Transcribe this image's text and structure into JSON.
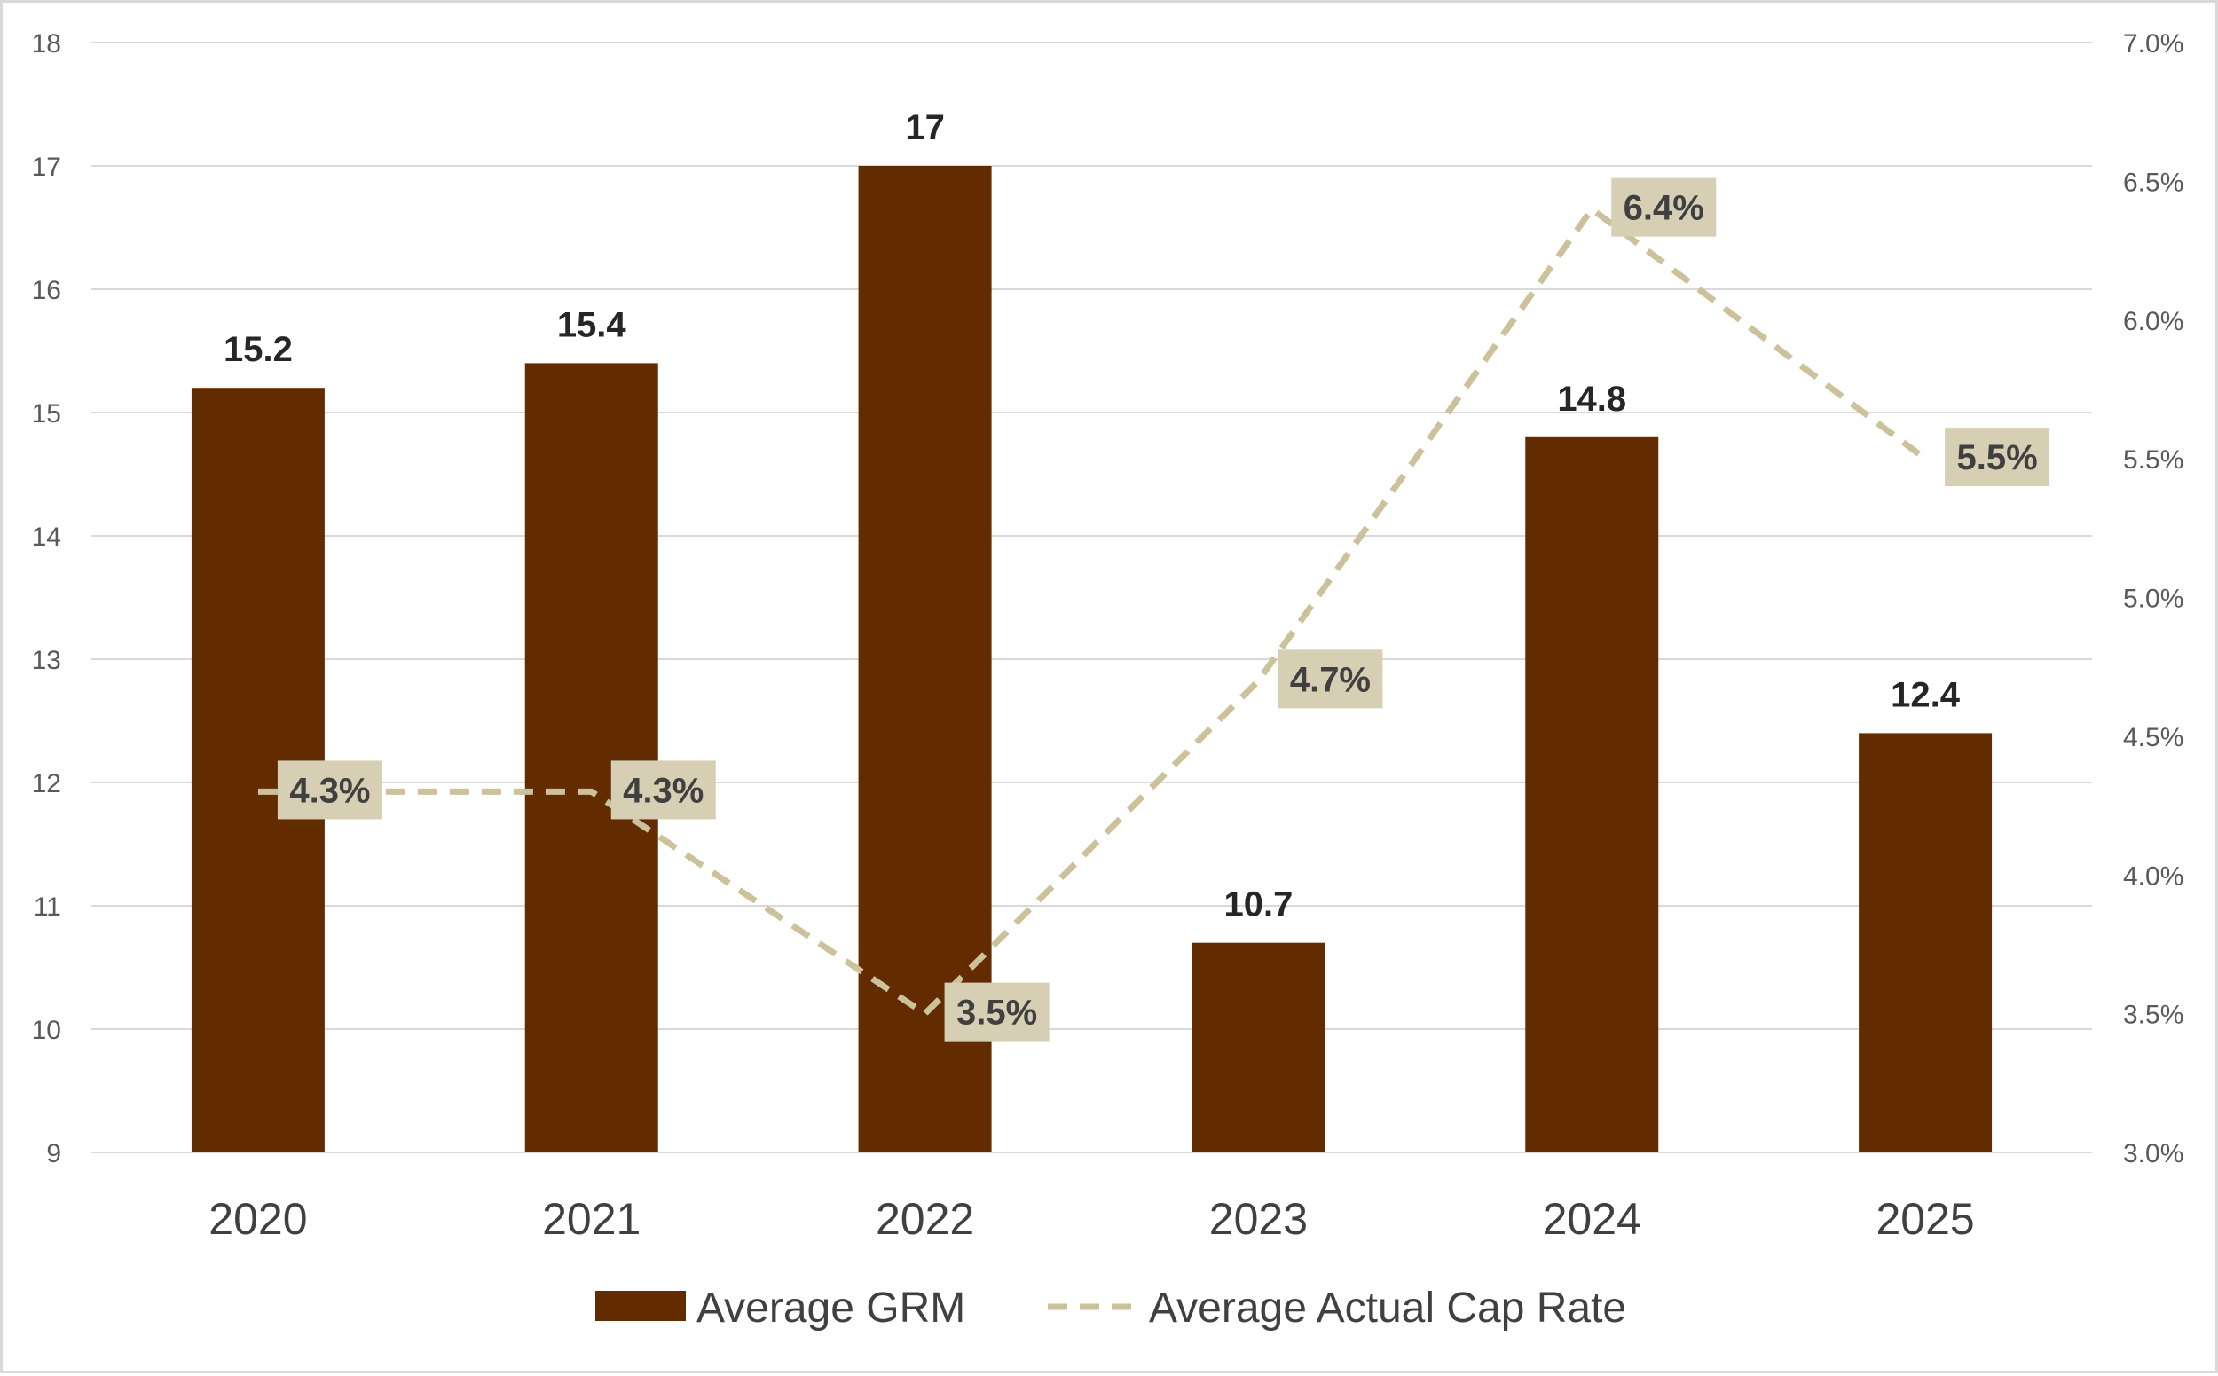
{
  "chart_data": {
    "type": "bar",
    "categories": [
      "2020",
      "2021",
      "2022",
      "2023",
      "2024",
      "2025"
    ],
    "series": [
      {
        "name": "Average GRM",
        "type": "bar",
        "axis": "left",
        "values": [
          15.2,
          15.4,
          17,
          10.7,
          14.8,
          12.4
        ],
        "labels": [
          "15.2",
          "15.4",
          "17",
          "10.7",
          "14.8",
          "12.4"
        ]
      },
      {
        "name": "Average Actual Cap Rate",
        "type": "line",
        "style": "dashed",
        "axis": "right",
        "values": [
          4.3,
          4.3,
          3.5,
          4.7,
          6.4,
          5.5
        ],
        "labels": [
          "4.3%",
          "4.3%",
          "3.5%",
          "4.7%",
          "6.4%",
          "5.5%"
        ]
      }
    ],
    "y_left": {
      "min": 9,
      "max": 18,
      "ticks": [
        9,
        10,
        11,
        12,
        13,
        14,
        15,
        16,
        17,
        18
      ],
      "tick_labels": [
        "9",
        "10",
        "11",
        "12",
        "13",
        "14",
        "15",
        "16",
        "17",
        "18"
      ]
    },
    "y_right": {
      "min": 3.0,
      "max": 7.0,
      "ticks": [
        3.0,
        3.5,
        4.0,
        4.5,
        5.0,
        5.5,
        6.0,
        6.5,
        7.0
      ],
      "tick_labels": [
        "3.0%",
        "3.5%",
        "4.0%",
        "4.5%",
        "5.0%",
        "5.5%",
        "6.0%",
        "6.5%",
        "7.0%"
      ]
    },
    "grid": true,
    "legend": "bottom",
    "colors": {
      "bar": "#632b00",
      "line": "#cbc19a",
      "label_box": "#d6cfb4",
      "grid": "#d9d9d9"
    }
  }
}
